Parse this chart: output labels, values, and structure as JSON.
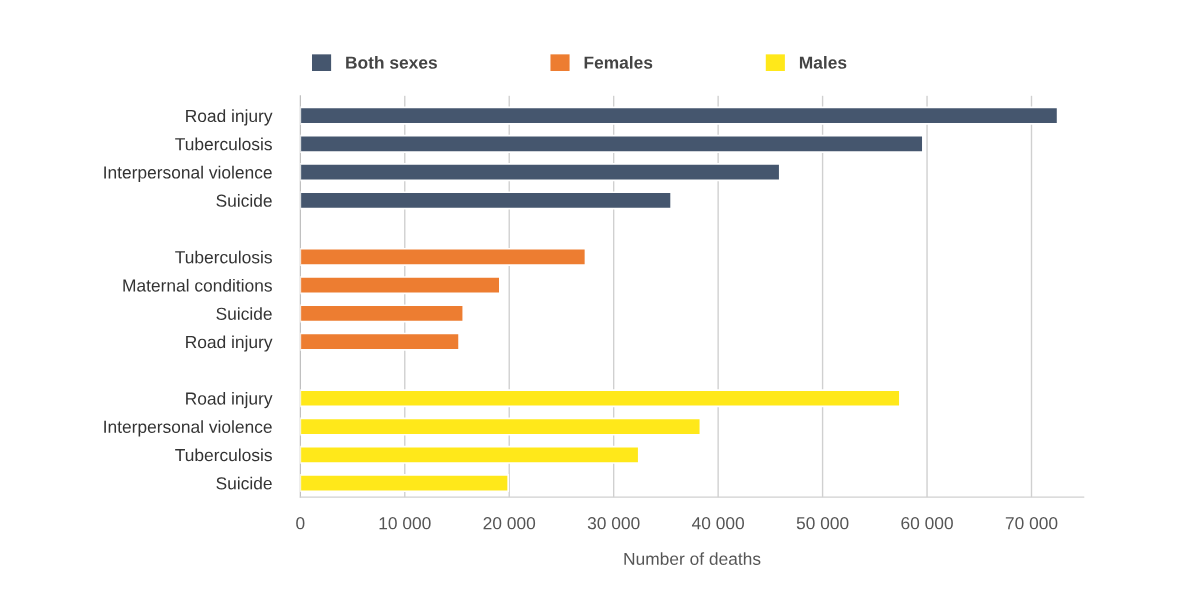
{
  "chart_data": {
    "type": "bar",
    "orientation": "horizontal",
    "xlabel": "Number of deaths",
    "categories": [
      "Road injury",
      "Tuberculosis",
      "Interpersonal violence",
      "Suicide",
      null,
      "Tuberculosis",
      "Maternal conditions",
      "Suicide",
      "Road injury",
      null,
      "Road injury",
      "Interpersonal violence",
      "Tuberculosis",
      "Suicide"
    ],
    "series": [
      {
        "name": "Both sexes",
        "color": "#45566e",
        "values": [
          72500,
          59600,
          45900,
          35500,
          null,
          null,
          null,
          null,
          null,
          null,
          null,
          null,
          null,
          null
        ]
      },
      {
        "name": "Females",
        "color": "#ed7d31",
        "values": [
          null,
          null,
          null,
          null,
          null,
          27300,
          19100,
          15600,
          15200,
          null,
          null,
          null,
          null,
          null
        ]
      },
      {
        "name": "Males",
        "color": "#ffe81a",
        "values": [
          null,
          null,
          null,
          null,
          null,
          null,
          null,
          null,
          null,
          null,
          57400,
          38300,
          32400,
          19900
        ]
      }
    ],
    "xlim": [
      0,
      75000
    ],
    "xticks": [
      0,
      {
        "value": 10000,
        "label": "10 000"
      },
      {
        "value": 20000,
        "label": "20 000"
      },
      {
        "value": 30000,
        "label": "30 000"
      },
      {
        "value": 40000,
        "label": "40 000"
      },
      {
        "value": 50000,
        "label": "50 000"
      },
      {
        "value": 60000,
        "label": "60 000"
      },
      {
        "value": 70000,
        "label": "70 000"
      }
    ],
    "grid": "x",
    "legend": "top"
  }
}
